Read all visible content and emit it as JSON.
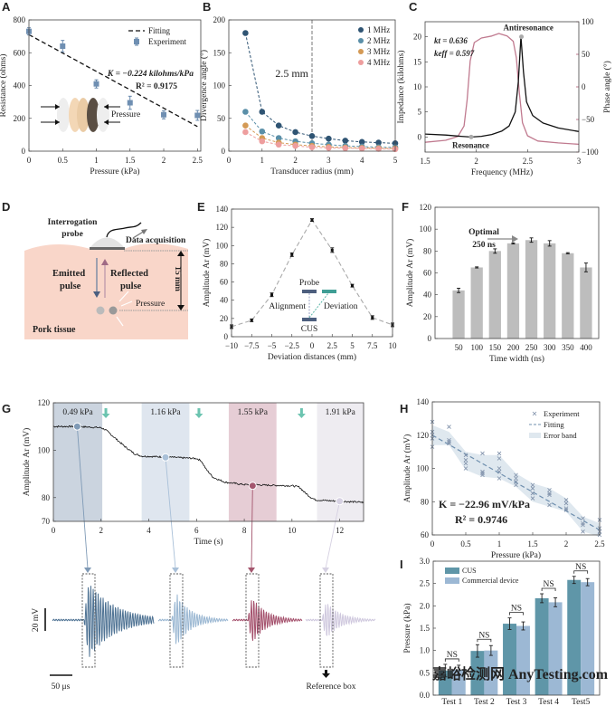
{
  "panels": [
    "A",
    "B",
    "C",
    "D",
    "E",
    "F",
    "G",
    "H",
    "I"
  ],
  "colors": {
    "blue_dark": "#2f5473",
    "blue_mid": "#5a8fa8",
    "orange": "#d49a55",
    "pink": "#ee9e9e",
    "phase": "#c07a8f",
    "bar_gray": "#bdbdbd",
    "cus": "#5f96a8",
    "commercial": "#9cb8d4",
    "teal_arrow": "#6cc4b0",
    "tissue": "#f9d6c9"
  },
  "chart_data": [
    {
      "panel": "A",
      "type": "scatter",
      "xlabel": "Pressure (kPa)",
      "ylabel": "Resistance (ohms)",
      "xlim": [
        0,
        2.55
      ],
      "ylim": [
        0,
        800
      ],
      "xticks": [
        0,
        0.5,
        1,
        1.5,
        2,
        2.5
      ],
      "yticks": [
        0,
        200,
        400,
        600,
        800
      ],
      "series": [
        {
          "name": "Experiment",
          "x": [
            0,
            0.5,
            1,
            1.5,
            2,
            2.5
          ],
          "y": [
            730,
            640,
            410,
            295,
            222,
            218
          ],
          "err": [
            22,
            35,
            25,
            40,
            25,
            30
          ]
        }
      ],
      "fit": {
        "name": "Fitting",
        "x": [
          0,
          2.5
        ],
        "y": [
          710,
          150
        ]
      },
      "annotations": [
        "K = −0.224 kilohms/kPa",
        "R² = 0.9175"
      ],
      "inset_label": "Pressure",
      "legend": "top-right"
    },
    {
      "panel": "B",
      "type": "line",
      "xlabel": "Transducer radius (mm)",
      "ylabel": "Divergence angle (°)",
      "xlim": [
        0,
        5
      ],
      "ylim": [
        0,
        200
      ],
      "xticks": [
        0,
        1,
        2,
        3,
        4,
        5
      ],
      "yticks": [
        0,
        50,
        100,
        150,
        200
      ],
      "x": [
        0.5,
        1,
        1.5,
        2,
        2.5,
        3,
        3.5,
        4,
        4.5,
        5
      ],
      "series": [
        {
          "name": "1 MHz",
          "values": [
            180,
            60,
            39,
            29,
            23,
            19,
            16,
            14,
            13,
            12
          ]
        },
        {
          "name": "2 MHz",
          "values": [
            60,
            30,
            20,
            15,
            12,
            10,
            8,
            7,
            6,
            6
          ]
        },
        {
          "name": "3 MHz",
          "values": [
            39,
            20,
            13,
            10,
            8,
            6.5,
            5.5,
            5,
            4.5,
            4
          ]
        },
        {
          "name": "4 MHz",
          "values": [
            29,
            15,
            10,
            8,
            6,
            5,
            4.5,
            4,
            3.5,
            3
          ]
        }
      ],
      "vline": 2.5,
      "annotation": "2.5 mm",
      "legend": "top-right"
    },
    {
      "panel": "C",
      "type": "line",
      "xlabel": "Frequency (MHz)",
      "ylabel": "Impedance (kilohms)",
      "ylabel_right": "Phase angle (°)",
      "xlim": [
        1.5,
        3
      ],
      "ylim": [
        -3,
        23
      ],
      "ylim_right": [
        -100,
        100
      ],
      "xticks": [
        1.5,
        2,
        2.5,
        3
      ],
      "yticks": [
        0,
        5,
        10,
        15,
        20
      ],
      "yticks_right": [
        -100,
        -50,
        0,
        50,
        100
      ],
      "impedance": {
        "x": [
          1.5,
          1.7,
          1.85,
          1.95,
          2.05,
          2.15,
          2.25,
          2.32,
          2.38,
          2.41,
          2.435,
          2.46,
          2.49,
          2.55,
          2.65,
          2.8,
          3.0
        ],
        "y": [
          0.6,
          0.4,
          0.15,
          0,
          0.15,
          0.5,
          1.2,
          2.2,
          5,
          11,
          20,
          13,
          7,
          4.3,
          2.8,
          1.8,
          1.1
        ]
      },
      "phase": {
        "x": [
          1.5,
          1.7,
          1.82,
          1.88,
          1.91,
          1.94,
          1.98,
          2.05,
          2.15,
          2.22,
          2.3,
          2.36,
          2.39,
          2.42,
          2.45,
          2.5,
          2.6,
          2.8,
          3.0
        ],
        "y": [
          -85,
          -82,
          -76,
          -60,
          -20,
          40,
          68,
          75,
          78,
          82,
          78,
          70,
          45,
          -10,
          -55,
          -75,
          -83,
          -86,
          -88
        ]
      },
      "points": [
        {
          "label": "Resonance",
          "x": 1.95,
          "y": 0
        },
        {
          "label": "Antiresonance",
          "x": 2.44,
          "y": 20
        }
      ],
      "annotations": [
        "kt = 0.636",
        "keff = 0.597"
      ]
    },
    {
      "panel": "E",
      "type": "scatter",
      "xlabel": "Deviation distances (mm)",
      "ylabel": "Amplitude Ar (mV)",
      "xlim": [
        -10,
        10
      ],
      "ylim": [
        0,
        140
      ],
      "xticks": [
        -10,
        -7.5,
        -5,
        -2.5,
        0,
        2.5,
        5,
        7.5,
        10
      ],
      "yticks": [
        0,
        20,
        40,
        60,
        80,
        100,
        120,
        140
      ],
      "x": [
        -10,
        -7.5,
        -5,
        -2.5,
        0,
        2.5,
        5,
        7.5,
        10
      ],
      "y": [
        11,
        18,
        46,
        90,
        128,
        95,
        56,
        21,
        13
      ],
      "err": [
        2,
        1.5,
        2,
        2,
        1.5,
        2.5,
        1.5,
        2,
        2
      ],
      "inset": {
        "probe": "Probe",
        "cus": "CUS",
        "alignment": "Alignment",
        "deviation": "Deviation"
      }
    },
    {
      "panel": "F",
      "type": "bar",
      "xlabel": "Time width (ns)",
      "ylabel": "Amplitude Ar (mV)",
      "ylim": [
        0,
        120
      ],
      "yticks": [
        0,
        20,
        40,
        60,
        80,
        100,
        120
      ],
      "categories": [
        "50",
        "100",
        "150",
        "200",
        "250",
        "300",
        "350",
        "400"
      ],
      "values": [
        44,
        65,
        80,
        87,
        90,
        87,
        78,
        65
      ],
      "err": [
        2,
        0.5,
        2,
        0.5,
        2,
        2.5,
        0.5,
        4
      ],
      "annotation": [
        "Optimal",
        "250 ns"
      ]
    },
    {
      "panel": "G",
      "type": "line",
      "xlabel": "Time (s)",
      "ylabel": "Amplitude Ar (mV)",
      "xlim": [
        0,
        13
      ],
      "ylim": [
        70,
        120
      ],
      "xticks": [
        0,
        2,
        4,
        6,
        8,
        10,
        12
      ],
      "yticks": [
        70,
        80,
        100,
        120
      ],
      "x": [
        0,
        1,
        2,
        2.2,
        2.6,
        3,
        3.4,
        3.7,
        5,
        6,
        6.2,
        6.4,
        6.7,
        7.2,
        8,
        10,
        10.3,
        10.5,
        10.8,
        11,
        12,
        13
      ],
      "y": [
        110,
        110,
        109.5,
        108.5,
        105,
        101.5,
        98.5,
        97.5,
        97,
        96.5,
        95.5,
        92,
        88.5,
        86.5,
        85.5,
        85,
        84.5,
        82.5,
        80,
        79,
        78.5,
        78
      ],
      "regions": [
        {
          "label": "0.49 kPa",
          "from": 0,
          "to": 2.05,
          "color": "#cbd4df"
        },
        {
          "label": "1.16 kPa",
          "from": 3.7,
          "to": 5.7,
          "color": "#dfe6ef"
        },
        {
          "label": "1.55 kPa",
          "from": 7.35,
          "to": 9.35,
          "color": "#e6cdd5"
        },
        {
          "label": "1.91 kPa",
          "from": 11.05,
          "to": 13,
          "color": "#eeecf1"
        }
      ],
      "markers": [
        {
          "x": 1,
          "y": 110,
          "color": "#7f9ab6"
        },
        {
          "x": 4.7,
          "y": 97,
          "color": "#a9c0d8"
        },
        {
          "x": 8.35,
          "y": 85,
          "color": "#a4566e"
        },
        {
          "x": 12,
          "y": 78.5,
          "color": "#d6d1e2"
        }
      ],
      "step_arrows": [
        2.2,
        6.1,
        10.4
      ],
      "waveforms": {
        "scale_amplitude": "20 mV",
        "scale_time": "50 μs",
        "reference_label": "Reference box",
        "colors": [
          "#4f7394",
          "#9ab7d2",
          "#a4506c",
          "#cfc8de"
        ]
      }
    },
    {
      "panel": "H",
      "type": "scatter",
      "xlabel": "Pressure (kPa)",
      "ylabel": "Amplitude Ar (mV)",
      "xlim": [
        0,
        2.5
      ],
      "ylim": [
        60,
        140
      ],
      "xticks": [
        0,
        0.5,
        1,
        1.5,
        2,
        2.5
      ],
      "yticks": [
        60,
        80,
        100,
        120,
        140
      ],
      "groups": [
        {
          "x": 0,
          "y": [
            113,
            118,
            120,
            122,
            128
          ]
        },
        {
          "x": 0.25,
          "y": [
            115,
            116,
            117,
            125
          ]
        },
        {
          "x": 0.5,
          "y": [
            100,
            103,
            105,
            108
          ]
        },
        {
          "x": 0.75,
          "y": [
            96,
            97,
            98,
            109
          ]
        },
        {
          "x": 1,
          "y": [
            94,
            98,
            100,
            106,
            109
          ]
        },
        {
          "x": 1.25,
          "y": [
            90,
            92,
            94,
            96
          ]
        },
        {
          "x": 1.5,
          "y": [
            82,
            85,
            88,
            90
          ]
        },
        {
          "x": 1.75,
          "y": [
            78,
            84,
            85,
            87
          ]
        },
        {
          "x": 2,
          "y": [
            75,
            76,
            79,
            81
          ]
        },
        {
          "x": 2.25,
          "y": [
            62,
            66,
            67,
            70
          ]
        },
        {
          "x": 2.5,
          "y": [
            60,
            62,
            64,
            69
          ]
        }
      ],
      "band_upper": [
        126,
        122,
        110,
        108,
        108,
        97,
        91,
        88,
        82,
        71,
        67
      ],
      "band_lower": [
        114,
        114,
        99,
        95,
        94,
        89,
        80,
        77,
        74,
        62,
        59
      ],
      "fit": {
        "x": [
          0,
          2.5
        ],
        "y": [
          120,
          63
        ]
      },
      "legend_entries": [
        "Experiment",
        "Fitting",
        "Error band"
      ],
      "legend": "top-right",
      "annotations": [
        "K = −22.96 mV/kPa",
        "R² = 0.9746"
      ]
    },
    {
      "panel": "I",
      "type": "bar",
      "xlabel": "",
      "ylabel": "Pressure (kPa)",
      "ylim": [
        0,
        3
      ],
      "yticks": [
        "0.0",
        "0.5",
        "1.0",
        "1.5",
        "2.0",
        "2.5",
        "3.0"
      ],
      "categories": [
        "Test 1",
        "Test 2",
        "Test 3",
        "Test 4",
        "Test5"
      ],
      "series": [
        {
          "name": "CUS",
          "values": [
            0.55,
            0.99,
            1.6,
            2.17,
            2.58
          ],
          "err": [
            0.14,
            0.14,
            0.13,
            0.1,
            0.08
          ]
        },
        {
          "name": "Commercial device",
          "values": [
            0.57,
            1.0,
            1.55,
            2.08,
            2.53
          ],
          "err": [
            0.1,
            0.11,
            0.09,
            0.1,
            0.08
          ]
        }
      ],
      "significance": "NS",
      "legend": "top-left"
    }
  ],
  "diagram_D": {
    "probe": [
      "Interrogation",
      "probe"
    ],
    "data": "Data acquisition",
    "emitted": [
      "Emitted",
      "pulse"
    ],
    "reflected": [
      "Reflected",
      "pulse"
    ],
    "pressure": "Pressure",
    "depth": "15 mm",
    "tissue": "Pork tissue"
  },
  "watermark": "嘉峪检测网 AnyTesting.com"
}
